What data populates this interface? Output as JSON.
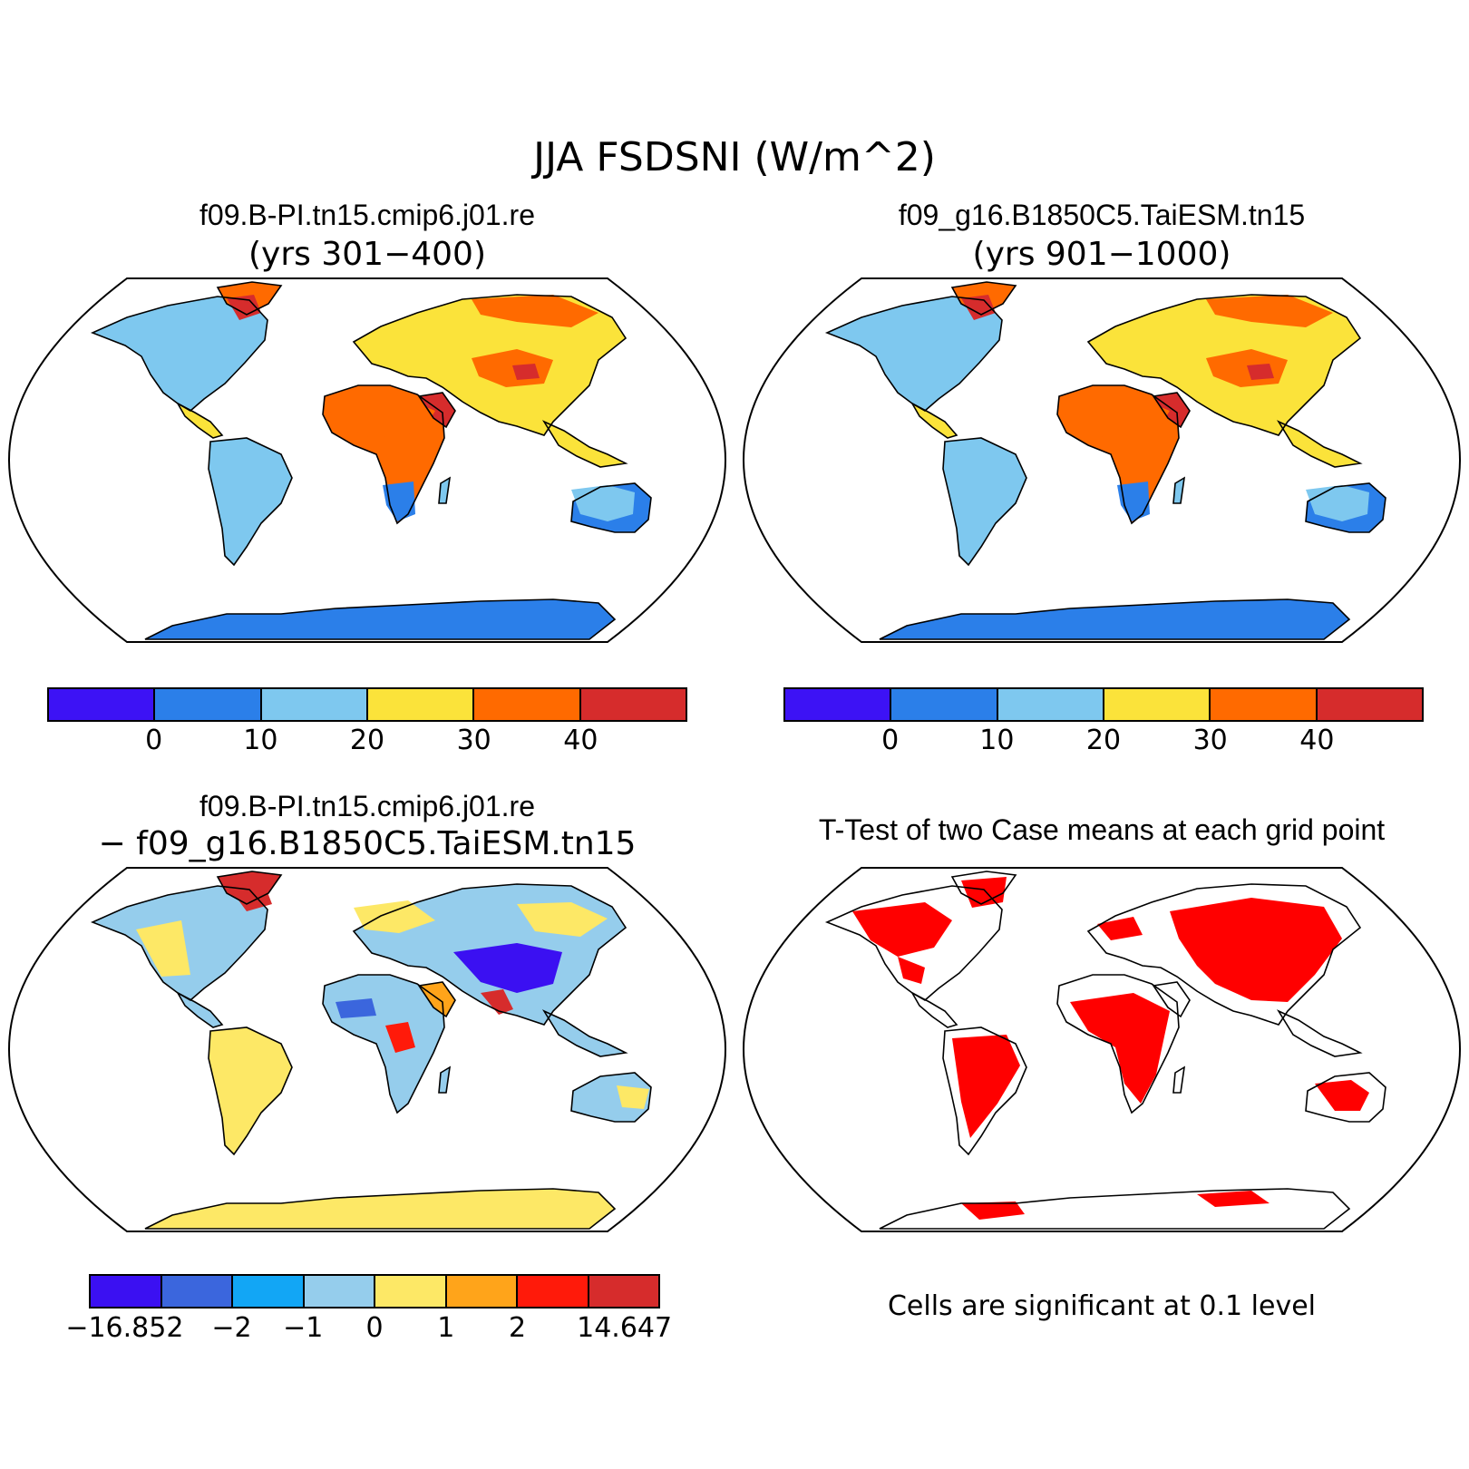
{
  "figure": {
    "title": "JJA FSDSNI (W/m^2)"
  },
  "panels": [
    {
      "id": "case1",
      "title": "f09.B-PI.tn15.cmip6.j01.re",
      "subtitle": "(yrs 301−400)",
      "colorbar": {
        "colors": [
          "#3d12f5",
          "#2b7fe9",
          "#7ec8ef",
          "#fbe33a",
          "#ff6a00",
          "#d62c2c"
        ],
        "labels": [
          "0",
          "10",
          "20",
          "30",
          "40"
        ]
      }
    },
    {
      "id": "case2",
      "title": "f09_g16.B1850C5.TaiESM.tn15",
      "subtitle": "(yrs 901−1000)",
      "colorbar": {
        "colors": [
          "#3d12f5",
          "#2b7fe9",
          "#7ec8ef",
          "#fbe33a",
          "#ff6a00",
          "#d62c2c"
        ],
        "labels": [
          "0",
          "10",
          "20",
          "30",
          "40"
        ]
      }
    },
    {
      "id": "difference",
      "title": "f09.B-PI.tn15.cmip6.j01.re",
      "subtitle": "− f09_g16.B1850C5.TaiESM.tn15",
      "colorbar": {
        "colors": [
          "#3b10f2",
          "#3b66dd",
          "#12a6f5",
          "#95cdec",
          "#fde866",
          "#ffa41a",
          "#ff1a0a",
          "#d62c2c"
        ],
        "labels": [
          "−16.852",
          "−2",
          "−1",
          "0",
          "1",
          "2",
          "14.647"
        ]
      }
    },
    {
      "id": "ttest",
      "title": "T-Test of two Case means at each grid point",
      "note": "Cells are significant at 0.1 level",
      "significance_color": "#ff0000"
    }
  ]
}
